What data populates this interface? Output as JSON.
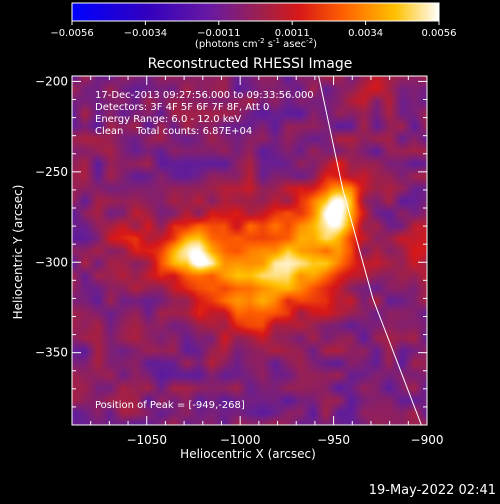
{
  "colorbar": {
    "ticks": [
      "-0.0056",
      "-0.0034",
      "-0.0011",
      "0.0011",
      "0.0034",
      "0.0056"
    ],
    "min": -0.0056,
    "max": 0.0056,
    "unit_parts": [
      "(photons cm",
      "-2",
      " s",
      "-1",
      " asec",
      "-2",
      ")"
    ]
  },
  "title": "Reconstructed RHESSI Image",
  "info_lines": [
    "17-Dec-2013 09:27:56.000 to 09:33:56.000",
    "Detectors: 3F 4F 5F 6F 7F 8F, Att 0",
    "Energy Range: 6.0 - 12.0 keV",
    "Clean    Total counts: 6.87E+04"
  ],
  "peak_label": "Position of Peak = [-949,-268]",
  "xlabel": "Heliocentric X (arcsec)",
  "ylabel": "Heliocentric Y (arcsec)",
  "footer_date": "19-May-2022 02:41",
  "chart_data": {
    "type": "heatmap",
    "title": "Reconstructed RHESSI Image",
    "xlabel": "Heliocentric X (arcsec)",
    "ylabel": "Heliocentric Y (arcsec)",
    "xlim": [
      -1090,
      -900
    ],
    "ylim": [
      -390,
      -197
    ],
    "x_ticks": [
      -1050,
      -1000,
      -950,
      -900
    ],
    "y_ticks": [
      -200,
      -250,
      -300,
      -350
    ],
    "x_tick_labels": [
      "−1050",
      "−1000",
      "−950",
      "−900"
    ],
    "y_tick_labels": [
      "−200",
      "−250",
      "−300",
      "−350"
    ],
    "colormap": "hot (blue-purple-red-yellow-white)",
    "value_range": [
      -0.0056,
      0.0056
    ],
    "peak": [
      -949,
      -268
    ],
    "sources": [
      {
        "x": -1027,
        "y": -295,
        "sigma_x": 12,
        "sigma_y": 11,
        "value": 0.0052
      },
      {
        "x": -949,
        "y": -268,
        "sigma_x": 9,
        "sigma_y": 13,
        "value": 0.0056
      },
      {
        "x": -985,
        "y": -292,
        "sigma_x": 25,
        "sigma_y": 18,
        "value": 0.0032
      },
      {
        "x": -995,
        "y": -320,
        "sigma_x": 20,
        "sigma_y": 17,
        "value": 0.003
      },
      {
        "x": -960,
        "y": -300,
        "sigma_x": 14,
        "sigma_y": 14,
        "value": 0.0027
      },
      {
        "x": -1060,
        "y": -290,
        "sigma_x": 10,
        "sigma_y": 12,
        "value": 0.0014
      },
      {
        "x": -905,
        "y": -300,
        "sigma_x": 11,
        "sigma_y": 15,
        "value": 0.0012
      },
      {
        "x": -930,
        "y": -205,
        "sigma_x": 13,
        "sigma_y": 8,
        "value": 0.001
      }
    ],
    "limb": [
      [
        -958,
        -197
      ],
      [
        -945,
        -260
      ],
      [
        -929,
        -320
      ],
      [
        -903,
        -390
      ]
    ]
  }
}
